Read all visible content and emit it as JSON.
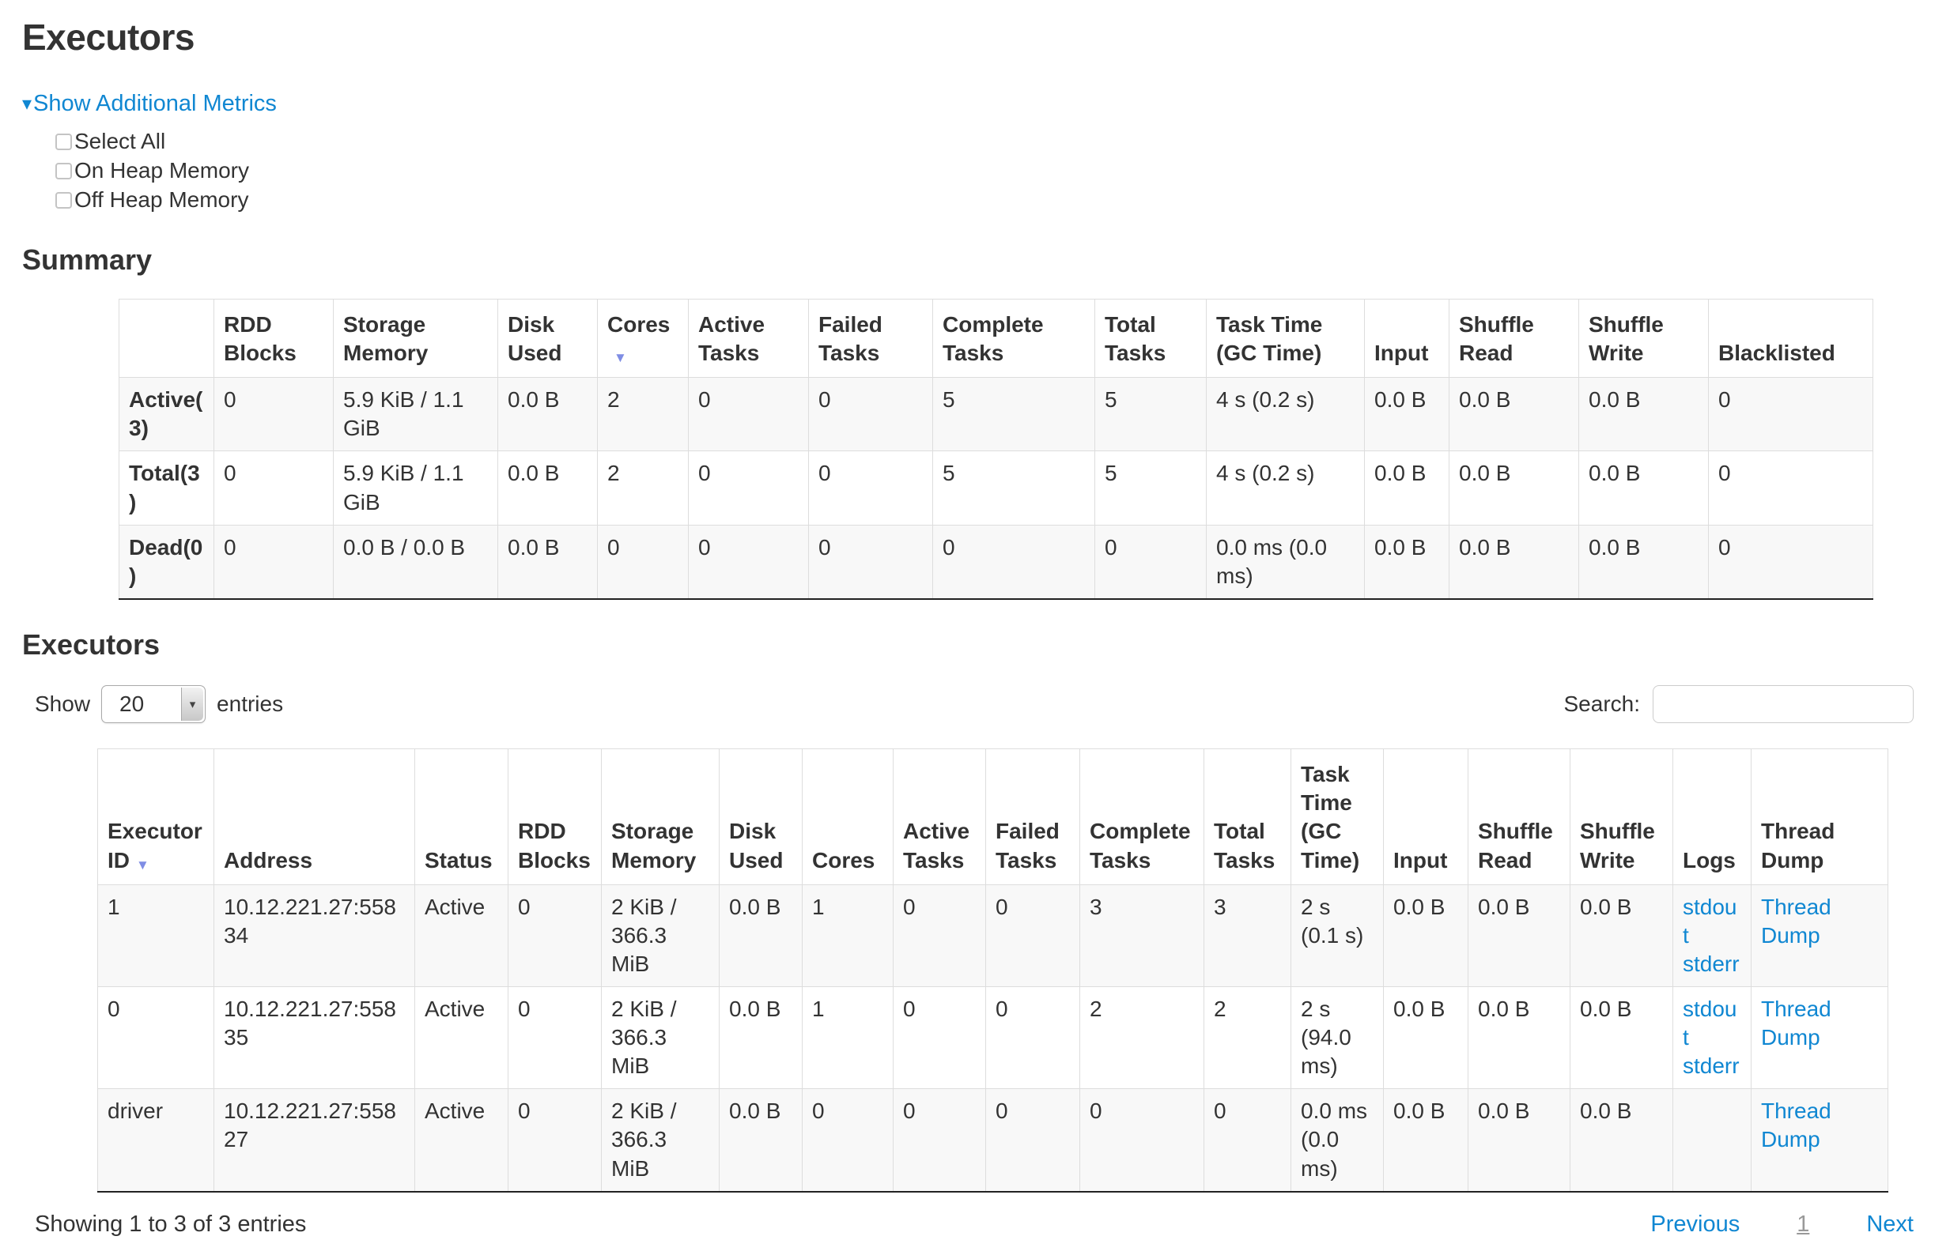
{
  "page": {
    "title": "Executors"
  },
  "icons": {
    "caret_down": "▾",
    "sort_down": "▼",
    "select_arrow": "▾"
  },
  "colors": {
    "link": "#1087d2",
    "sort_arrow": "#7f8de4",
    "current_page": "#999999"
  },
  "metrics": {
    "toggle_label": "Show Additional Metrics",
    "checkboxes": [
      {
        "label": "Select All",
        "checked": false
      },
      {
        "label": "On Heap Memory",
        "checked": false
      },
      {
        "label": "Off Heap Memory",
        "checked": false
      }
    ]
  },
  "summary": {
    "heading": "Summary",
    "table": {
      "headers": [
        {
          "label": "",
          "sort": false
        },
        {
          "label": "RDD Blocks",
          "sort": false
        },
        {
          "label": "Storage Memory",
          "sort": false
        },
        {
          "label": "Disk Used",
          "sort": false
        },
        {
          "label": "Cores",
          "sort": true
        },
        {
          "label": "Active Tasks",
          "sort": false
        },
        {
          "label": "Failed Tasks",
          "sort": false
        },
        {
          "label": "Complete Tasks",
          "sort": false
        },
        {
          "label": "Total Tasks",
          "sort": false
        },
        {
          "label": "Task Time (GC Time)",
          "sort": false
        },
        {
          "label": "Input",
          "sort": false
        },
        {
          "label": "Shuffle Read",
          "sort": false
        },
        {
          "label": "Shuffle Write",
          "sort": false
        },
        {
          "label": "Blacklisted",
          "sort": false
        }
      ],
      "rows": [
        {
          "label": "Active(3)",
          "cells": [
            "0",
            "5.9 KiB / 1.1 GiB",
            "0.0 B",
            "2",
            "0",
            "0",
            "5",
            "5",
            "4 s (0.2 s)",
            "0.0 B",
            "0.0 B",
            "0.0 B",
            "0"
          ]
        },
        {
          "label": "Total(3)",
          "cells": [
            "0",
            "5.9 KiB / 1.1 GiB",
            "0.0 B",
            "2",
            "0",
            "0",
            "5",
            "5",
            "4 s (0.2 s)",
            "0.0 B",
            "0.0 B",
            "0.0 B",
            "0"
          ]
        },
        {
          "label": "Dead(0)",
          "cells": [
            "0",
            "0.0 B / 0.0 B",
            "0.0 B",
            "0",
            "0",
            "0",
            "0",
            "0",
            "0.0 ms (0.0 ms)",
            "0.0 B",
            "0.0 B",
            "0.0 B",
            "0"
          ]
        }
      ]
    }
  },
  "executors": {
    "heading": "Executors",
    "show_label": "Show",
    "page_size": "20",
    "entries_label": "entries",
    "search_label": "Search:",
    "search_value": "",
    "table": {
      "headers": [
        {
          "label": "Executor ID",
          "sort": true
        },
        {
          "label": "Address",
          "sort": false
        },
        {
          "label": "Status",
          "sort": false
        },
        {
          "label": "RDD Blocks",
          "sort": false
        },
        {
          "label": "Storage Memory",
          "sort": false
        },
        {
          "label": "Disk Used",
          "sort": false
        },
        {
          "label": "Cores",
          "sort": false
        },
        {
          "label": "Active Tasks",
          "sort": false
        },
        {
          "label": "Failed Tasks",
          "sort": false
        },
        {
          "label": "Complete Tasks",
          "sort": false
        },
        {
          "label": "Total Tasks",
          "sort": false
        },
        {
          "label": "Task Time (GC Time)",
          "sort": false
        },
        {
          "label": "Input",
          "sort": false
        },
        {
          "label": "Shuffle Read",
          "sort": false
        },
        {
          "label": "Shuffle Write",
          "sort": false
        },
        {
          "label": "Logs",
          "sort": false
        },
        {
          "label": "Thread Dump",
          "sort": false
        }
      ],
      "rows": [
        {
          "cells": [
            "1",
            "10.12.221.27:55834",
            "Active",
            "0",
            "2 KiB / 366.3 MiB",
            "0.0 B",
            "1",
            "0",
            "0",
            "3",
            "3",
            "2 s (0.1 s)",
            "0.0 B",
            "0.0 B",
            "0.0 B",
            {
              "links": [
                "stdout",
                "stderr"
              ]
            },
            {
              "links": [
                "Thread Dump"
              ]
            }
          ]
        },
        {
          "cells": [
            "0",
            "10.12.221.27:55835",
            "Active",
            "0",
            "2 KiB / 366.3 MiB",
            "0.0 B",
            "1",
            "0",
            "0",
            "2",
            "2",
            "2 s (94.0 ms)",
            "0.0 B",
            "0.0 B",
            "0.0 B",
            {
              "links": [
                "stdout",
                "stderr"
              ]
            },
            {
              "links": [
                "Thread Dump"
              ]
            }
          ]
        },
        {
          "cells": [
            "driver",
            "10.12.221.27:55827",
            "Active",
            "0",
            "2 KiB / 366.3 MiB",
            "0.0 B",
            "0",
            "0",
            "0",
            "0",
            "0",
            "0.0 ms (0.0 ms)",
            "0.0 B",
            "0.0 B",
            "0.0 B",
            {
              "links": []
            },
            {
              "links": [
                "Thread Dump"
              ]
            }
          ]
        }
      ]
    },
    "footer": {
      "info": "Showing 1 to 3 of 3 entries",
      "previous": "Previous",
      "page": "1",
      "next": "Next"
    }
  }
}
